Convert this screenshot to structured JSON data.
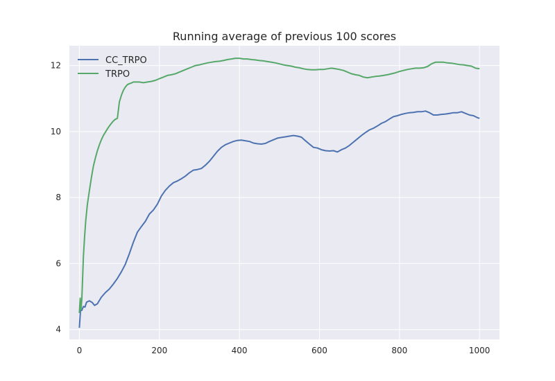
{
  "chart_data": {
    "type": "line",
    "title": "Running average of previous 100 scores",
    "xlabel": "",
    "ylabel": "",
    "xlim": [
      -25,
      1050
    ],
    "ylim": [
      3.7,
      12.6
    ],
    "xticks": [
      "0",
      "200",
      "400",
      "600",
      "800",
      "1000"
    ],
    "yticks": [
      "4",
      "6",
      "8",
      "10",
      "12"
    ],
    "grid": true,
    "legend_position": "top-left",
    "background": "#eaeaf2",
    "series": [
      {
        "name": "CC_TRPO",
        "color": "#4c72b0",
        "points": [
          [
            0,
            4.05
          ],
          [
            3,
            4.6
          ],
          [
            6,
            4.58
          ],
          [
            10,
            4.7
          ],
          [
            14,
            4.68
          ],
          [
            18,
            4.83
          ],
          [
            25,
            4.87
          ],
          [
            32,
            4.82
          ],
          [
            38,
            4.73
          ],
          [
            45,
            4.78
          ],
          [
            55,
            4.98
          ],
          [
            65,
            5.12
          ],
          [
            75,
            5.23
          ],
          [
            85,
            5.38
          ],
          [
            95,
            5.55
          ],
          [
            105,
            5.75
          ],
          [
            115,
            5.98
          ],
          [
            125,
            6.3
          ],
          [
            135,
            6.65
          ],
          [
            145,
            6.95
          ],
          [
            155,
            7.12
          ],
          [
            165,
            7.28
          ],
          [
            175,
            7.5
          ],
          [
            185,
            7.62
          ],
          [
            195,
            7.8
          ],
          [
            205,
            8.05
          ],
          [
            215,
            8.22
          ],
          [
            225,
            8.35
          ],
          [
            235,
            8.45
          ],
          [
            245,
            8.5
          ],
          [
            255,
            8.57
          ],
          [
            265,
            8.65
          ],
          [
            275,
            8.75
          ],
          [
            285,
            8.83
          ],
          [
            295,
            8.85
          ],
          [
            305,
            8.88
          ],
          [
            315,
            8.98
          ],
          [
            325,
            9.1
          ],
          [
            335,
            9.25
          ],
          [
            345,
            9.4
          ],
          [
            355,
            9.52
          ],
          [
            365,
            9.6
          ],
          [
            375,
            9.65
          ],
          [
            385,
            9.7
          ],
          [
            395,
            9.73
          ],
          [
            405,
            9.74
          ],
          [
            415,
            9.72
          ],
          [
            425,
            9.7
          ],
          [
            435,
            9.65
          ],
          [
            445,
            9.63
          ],
          [
            455,
            9.62
          ],
          [
            465,
            9.64
          ],
          [
            475,
            9.7
          ],
          [
            485,
            9.75
          ],
          [
            495,
            9.8
          ],
          [
            505,
            9.82
          ],
          [
            515,
            9.84
          ],
          [
            525,
            9.86
          ],
          [
            535,
            9.88
          ],
          [
            545,
            9.86
          ],
          [
            555,
            9.83
          ],
          [
            565,
            9.72
          ],
          [
            575,
            9.62
          ],
          [
            585,
            9.52
          ],
          [
            595,
            9.5
          ],
          [
            605,
            9.45
          ],
          [
            615,
            9.42
          ],
          [
            625,
            9.41
          ],
          [
            635,
            9.42
          ],
          [
            645,
            9.38
          ],
          [
            655,
            9.45
          ],
          [
            665,
            9.5
          ],
          [
            675,
            9.58
          ],
          [
            685,
            9.68
          ],
          [
            695,
            9.78
          ],
          [
            705,
            9.88
          ],
          [
            715,
            9.97
          ],
          [
            725,
            10.05
          ],
          [
            735,
            10.1
          ],
          [
            745,
            10.17
          ],
          [
            755,
            10.25
          ],
          [
            765,
            10.3
          ],
          [
            775,
            10.38
          ],
          [
            785,
            10.45
          ],
          [
            795,
            10.48
          ],
          [
            805,
            10.52
          ],
          [
            815,
            10.55
          ],
          [
            825,
            10.57
          ],
          [
            835,
            10.58
          ],
          [
            845,
            10.6
          ],
          [
            855,
            10.6
          ],
          [
            865,
            10.62
          ],
          [
            875,
            10.57
          ],
          [
            885,
            10.5
          ],
          [
            895,
            10.5
          ],
          [
            905,
            10.52
          ],
          [
            915,
            10.53
          ],
          [
            925,
            10.55
          ],
          [
            935,
            10.57
          ],
          [
            945,
            10.57
          ],
          [
            955,
            10.6
          ],
          [
            965,
            10.55
          ],
          [
            975,
            10.5
          ],
          [
            985,
            10.48
          ],
          [
            995,
            10.42
          ],
          [
            1000,
            10.4
          ]
        ]
      },
      {
        "name": "TRPO",
        "color": "#55a868",
        "points": [
          [
            0,
            4.5
          ],
          [
            2,
            4.95
          ],
          [
            4,
            4.6
          ],
          [
            6,
            4.9
          ],
          [
            8,
            5.5
          ],
          [
            10,
            6.2
          ],
          [
            13,
            6.8
          ],
          [
            16,
            7.3
          ],
          [
            20,
            7.8
          ],
          [
            25,
            8.2
          ],
          [
            30,
            8.6
          ],
          [
            35,
            8.95
          ],
          [
            40,
            9.2
          ],
          [
            45,
            9.42
          ],
          [
            50,
            9.6
          ],
          [
            55,
            9.75
          ],
          [
            60,
            9.88
          ],
          [
            65,
            9.98
          ],
          [
            70,
            10.08
          ],
          [
            75,
            10.17
          ],
          [
            80,
            10.25
          ],
          [
            85,
            10.32
          ],
          [
            90,
            10.37
          ],
          [
            95,
            10.4
          ],
          [
            100,
            10.9
          ],
          [
            105,
            11.1
          ],
          [
            110,
            11.25
          ],
          [
            115,
            11.35
          ],
          [
            120,
            11.42
          ],
          [
            125,
            11.45
          ],
          [
            130,
            11.47
          ],
          [
            135,
            11.5
          ],
          [
            140,
            11.5
          ],
          [
            150,
            11.5
          ],
          [
            160,
            11.48
          ],
          [
            170,
            11.5
          ],
          [
            180,
            11.52
          ],
          [
            190,
            11.55
          ],
          [
            200,
            11.6
          ],
          [
            210,
            11.65
          ],
          [
            220,
            11.7
          ],
          [
            230,
            11.72
          ],
          [
            240,
            11.75
          ],
          [
            250,
            11.8
          ],
          [
            260,
            11.85
          ],
          [
            270,
            11.9
          ],
          [
            280,
            11.95
          ],
          [
            290,
            12.0
          ],
          [
            300,
            12.02
          ],
          [
            310,
            12.05
          ],
          [
            320,
            12.08
          ],
          [
            330,
            12.1
          ],
          [
            340,
            12.12
          ],
          [
            350,
            12.13
          ],
          [
            360,
            12.15
          ],
          [
            370,
            12.18
          ],
          [
            380,
            12.2
          ],
          [
            390,
            12.22
          ],
          [
            400,
            12.22
          ],
          [
            410,
            12.2
          ],
          [
            420,
            12.2
          ],
          [
            430,
            12.18
          ],
          [
            440,
            12.17
          ],
          [
            450,
            12.15
          ],
          [
            460,
            12.14
          ],
          [
            470,
            12.12
          ],
          [
            480,
            12.1
          ],
          [
            490,
            12.08
          ],
          [
            500,
            12.05
          ],
          [
            510,
            12.02
          ],
          [
            520,
            12.0
          ],
          [
            530,
            11.98
          ],
          [
            540,
            11.95
          ],
          [
            550,
            11.93
          ],
          [
            560,
            11.9
          ],
          [
            570,
            11.88
          ],
          [
            580,
            11.87
          ],
          [
            590,
            11.87
          ],
          [
            600,
            11.88
          ],
          [
            610,
            11.88
          ],
          [
            620,
            11.9
          ],
          [
            630,
            11.92
          ],
          [
            640,
            11.9
          ],
          [
            650,
            11.88
          ],
          [
            660,
            11.85
          ],
          [
            670,
            11.8
          ],
          [
            680,
            11.75
          ],
          [
            690,
            11.72
          ],
          [
            700,
            11.7
          ],
          [
            710,
            11.65
          ],
          [
            720,
            11.63
          ],
          [
            730,
            11.65
          ],
          [
            740,
            11.67
          ],
          [
            750,
            11.68
          ],
          [
            760,
            11.7
          ],
          [
            770,
            11.72
          ],
          [
            780,
            11.75
          ],
          [
            790,
            11.78
          ],
          [
            800,
            11.82
          ],
          [
            810,
            11.85
          ],
          [
            820,
            11.88
          ],
          [
            830,
            11.9
          ],
          [
            840,
            11.92
          ],
          [
            850,
            11.92
          ],
          [
            860,
            11.93
          ],
          [
            870,
            11.97
          ],
          [
            880,
            12.05
          ],
          [
            890,
            12.1
          ],
          [
            900,
            12.1
          ],
          [
            910,
            12.1
          ],
          [
            920,
            12.08
          ],
          [
            930,
            12.07
          ],
          [
            940,
            12.05
          ],
          [
            950,
            12.03
          ],
          [
            960,
            12.02
          ],
          [
            970,
            12.0
          ],
          [
            980,
            11.98
          ],
          [
            990,
            11.92
          ],
          [
            1000,
            11.9
          ]
        ]
      }
    ]
  }
}
